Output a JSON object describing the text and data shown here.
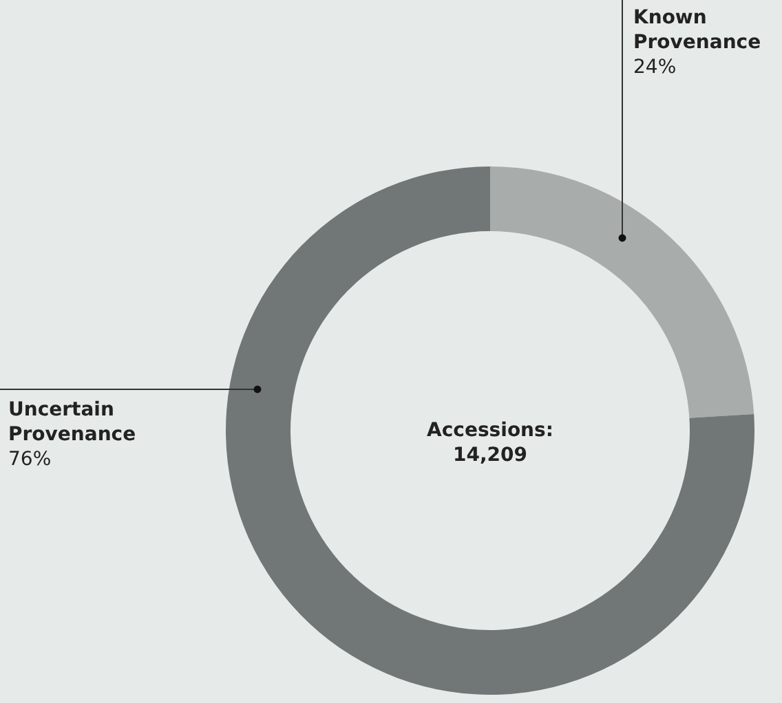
{
  "chart_data": {
    "type": "donut",
    "categories": [
      "Known Provenance",
      "Uncertain Provenance"
    ],
    "values": [
      24,
      76
    ],
    "colors": [
      "#a8adab",
      "#717676"
    ],
    "value_labels": [
      "24%",
      "76%"
    ],
    "annotations": [
      "Accessions:\n14,209"
    ]
  }
}
